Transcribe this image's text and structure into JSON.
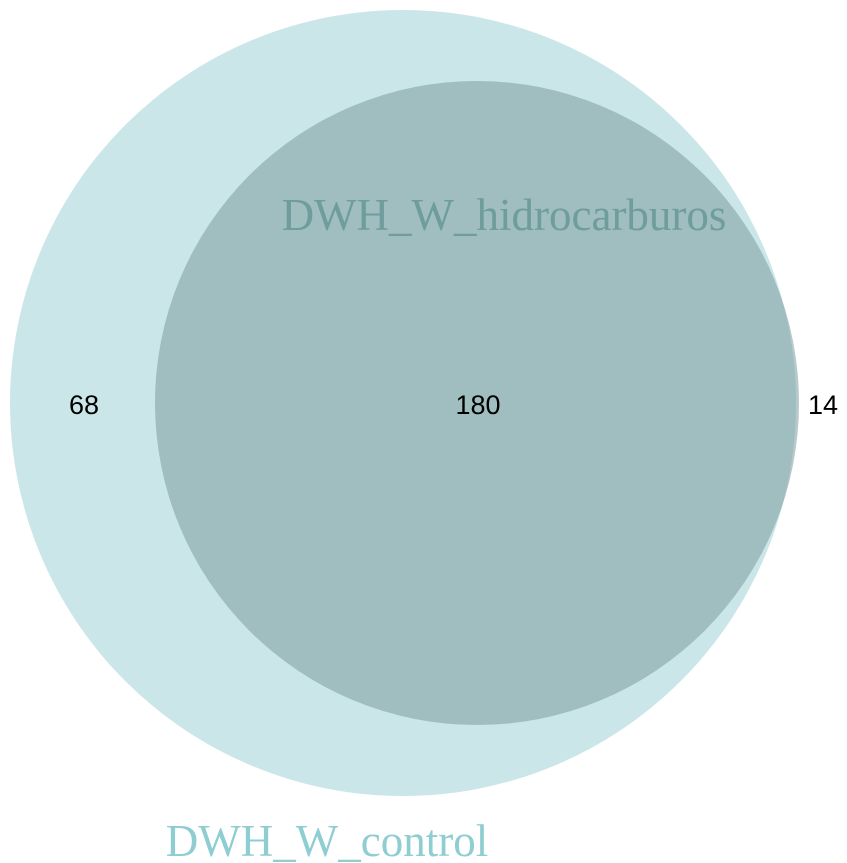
{
  "venn": {
    "sets": [
      {
        "id": "a",
        "label": "DWH_W_control",
        "color": "#a9d6da",
        "label_color": "#8ecdd1"
      },
      {
        "id": "b",
        "label": "DWH_W_hidrocarburos",
        "color": "#7d9d9d",
        "label_color": "#6f9c9c"
      }
    ],
    "regions": {
      "only_a": "68",
      "both": "180",
      "only_b": "14"
    },
    "count_color": "#000000"
  }
}
